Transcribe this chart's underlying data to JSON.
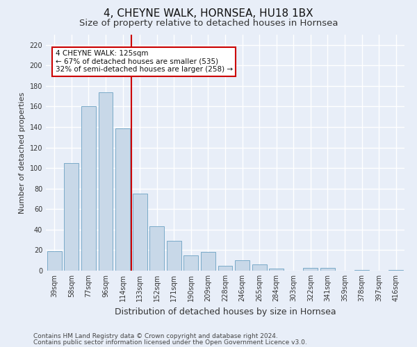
{
  "title": "4, CHEYNE WALK, HORNSEA, HU18 1BX",
  "subtitle": "Size of property relative to detached houses in Hornsea",
  "xlabel": "Distribution of detached houses by size in Hornsea",
  "ylabel": "Number of detached properties",
  "categories": [
    "39sqm",
    "58sqm",
    "77sqm",
    "96sqm",
    "114sqm",
    "133sqm",
    "152sqm",
    "171sqm",
    "190sqm",
    "209sqm",
    "228sqm",
    "246sqm",
    "265sqm",
    "284sqm",
    "303sqm",
    "322sqm",
    "341sqm",
    "359sqm",
    "378sqm",
    "397sqm",
    "416sqm"
  ],
  "values": [
    19,
    105,
    160,
    174,
    139,
    75,
    43,
    29,
    15,
    18,
    5,
    10,
    6,
    2,
    0,
    3,
    3,
    0,
    1,
    0,
    1
  ],
  "bar_color": "#c8d8e8",
  "bar_edge_color": "#7aaac8",
  "annotation_text": "4 CHEYNE WALK: 125sqm\n← 67% of detached houses are smaller (535)\n32% of semi-detached houses are larger (258) →",
  "footnote1": "Contains HM Land Registry data © Crown copyright and database right 2024.",
  "footnote2": "Contains public sector information licensed under the Open Government Licence v3.0.",
  "ylim": [
    0,
    230
  ],
  "yticks": [
    0,
    20,
    40,
    60,
    80,
    100,
    120,
    140,
    160,
    180,
    200,
    220
  ],
  "bg_color": "#e8eef8",
  "grid_color": "#ffffff",
  "title_fontsize": 11,
  "subtitle_fontsize": 9.5,
  "tick_fontsize": 7,
  "ylabel_fontsize": 8,
  "xlabel_fontsize": 9,
  "footnote_fontsize": 6.5
}
